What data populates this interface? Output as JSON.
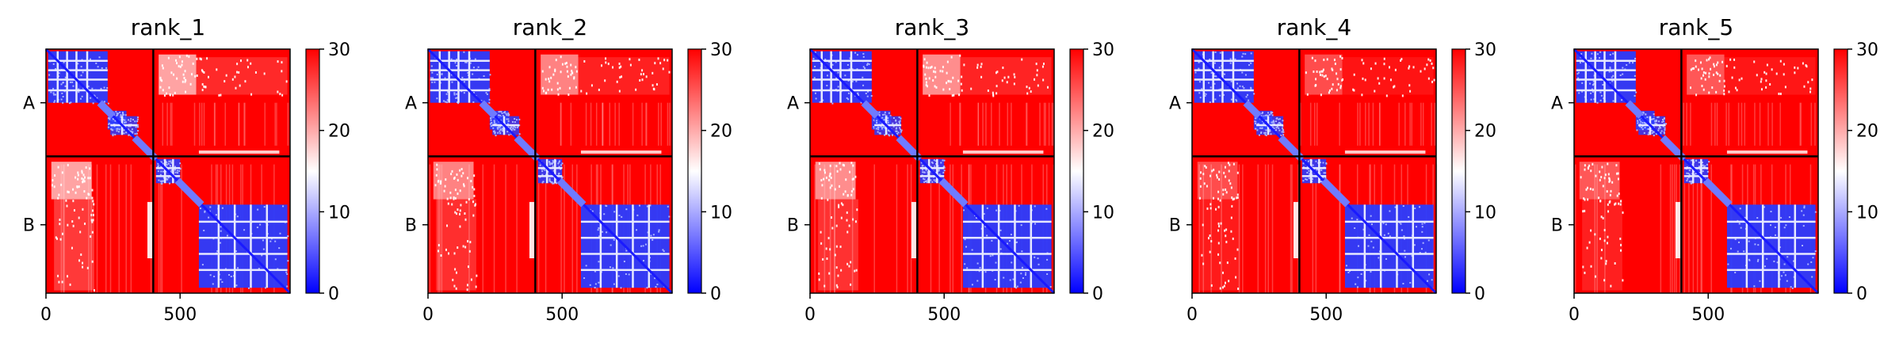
{
  "chart_data": [
    {
      "type": "heatmap",
      "title": "rank_1",
      "x_ticks": [
        0,
        500
      ],
      "x_range": [
        0,
        910
      ],
      "y_tick_labels": [
        "A",
        "B"
      ],
      "chain_boundary": 400,
      "n_residues": 910,
      "colorbar": {
        "min": 0,
        "max": 30,
        "ticks": [
          0,
          10,
          20,
          30
        ],
        "colors": [
          "#0000ff",
          "#ffffff",
          "#ff0000"
        ]
      },
      "variant": 0
    },
    {
      "type": "heatmap",
      "title": "rank_2",
      "x_ticks": [
        0,
        500
      ],
      "x_range": [
        0,
        910
      ],
      "y_tick_labels": [
        "A",
        "B"
      ],
      "chain_boundary": 400,
      "n_residues": 910,
      "colorbar": {
        "min": 0,
        "max": 30,
        "ticks": [
          0,
          10,
          20,
          30
        ],
        "colors": [
          "#0000ff",
          "#ffffff",
          "#ff0000"
        ]
      },
      "variant": 1
    },
    {
      "type": "heatmap",
      "title": "rank_3",
      "x_ticks": [
        0,
        500
      ],
      "x_range": [
        0,
        910
      ],
      "y_tick_labels": [
        "A",
        "B"
      ],
      "chain_boundary": 400,
      "n_residues": 910,
      "colorbar": {
        "min": 0,
        "max": 30,
        "ticks": [
          0,
          10,
          20,
          30
        ],
        "colors": [
          "#0000ff",
          "#ffffff",
          "#ff0000"
        ]
      },
      "variant": 2
    },
    {
      "type": "heatmap",
      "title": "rank_4",
      "x_ticks": [
        0,
        500
      ],
      "x_range": [
        0,
        910
      ],
      "y_tick_labels": [
        "A",
        "B"
      ],
      "chain_boundary": 400,
      "n_residues": 910,
      "colorbar": {
        "min": 0,
        "max": 30,
        "ticks": [
          0,
          10,
          20,
          30
        ],
        "colors": [
          "#0000ff",
          "#ffffff",
          "#ff0000"
        ]
      },
      "variant": 3
    },
    {
      "type": "heatmap",
      "title": "rank_5",
      "x_ticks": [
        0,
        500
      ],
      "x_range": [
        0,
        910
      ],
      "y_tick_labels": [
        "A",
        "B"
      ],
      "chain_boundary": 400,
      "n_residues": 910,
      "colorbar": {
        "min": 0,
        "max": 30,
        "ticks": [
          0,
          10,
          20,
          30
        ],
        "colors": [
          "#0000ff",
          "#ffffff",
          "#ff0000"
        ]
      },
      "variant": 4
    }
  ]
}
